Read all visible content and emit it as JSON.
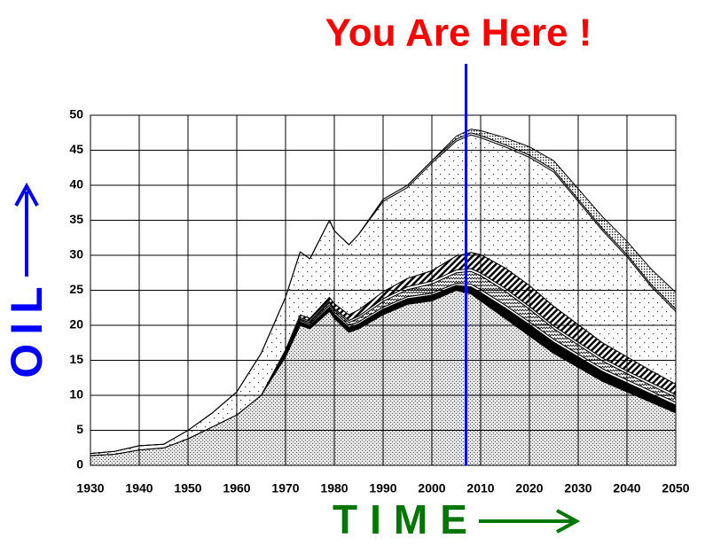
{
  "chart_data": {
    "type": "stacked_area",
    "annotation": {
      "text": "You Are Here !",
      "x": 2007,
      "color": "#ff0000",
      "line_color": "#0000ff"
    },
    "ylabel": "OIL",
    "xlabel": "TIME",
    "ylabel_color": "#0000ff",
    "xlabel_color": "#007700",
    "xlim": [
      1930,
      2050
    ],
    "ylim": [
      0,
      50
    ],
    "xticks": [
      1930,
      1940,
      1950,
      1960,
      1970,
      1980,
      1990,
      2000,
      2010,
      2020,
      2030,
      2040,
      2050
    ],
    "yticks": [
      0,
      5,
      10,
      15,
      20,
      25,
      30,
      35,
      40,
      45,
      50
    ],
    "grid": true,
    "x": [
      1930,
      1935,
      1940,
      1945,
      1950,
      1955,
      1960,
      1965,
      1970,
      1973,
      1975,
      1979,
      1980,
      1983,
      1985,
      1990,
      1995,
      2000,
      2005,
      2008,
      2010,
      2015,
      2020,
      2025,
      2030,
      2035,
      2040,
      2045,
      2050
    ],
    "series": [
      {
        "color": "#cccccc",
        "pattern": "fine",
        "values": [
          1.4,
          1.6,
          2.2,
          2.5,
          3.8,
          5.5,
          7.2,
          10,
          15.5,
          20,
          19.5,
          22,
          21,
          19,
          19.5,
          21.5,
          23,
          23.5,
          25,
          24.5,
          23.5,
          21,
          18.5,
          16,
          14,
          12,
          10.5,
          9,
          7.5
        ]
      },
      {
        "color": "#000000",
        "pattern": "solid",
        "values": [
          0,
          0,
          0,
          0,
          0,
          0,
          0,
          0,
          0.3,
          0.5,
          0.5,
          0.6,
          0.6,
          0.7,
          0.7,
          0.8,
          0.8,
          0.8,
          0.7,
          1,
          1.2,
          1.5,
          1.6,
          1.6,
          1.5,
          1.4,
          1.3,
          1.2,
          1.1
        ]
      },
      {
        "color": "#ffffff",
        "pattern": "solid",
        "values": [
          0,
          0,
          0,
          0,
          0,
          0,
          0,
          0,
          0.2,
          0.2,
          0.2,
          0.3,
          0.3,
          0.3,
          0.3,
          0.3,
          0.3,
          0.3,
          0.3,
          0.4,
          0.4,
          0.4,
          0.4,
          0.4,
          0.4,
          0.4,
          0.4,
          0.4,
          0.4
        ]
      },
      {
        "color": "#ffffff",
        "pattern": "wavy",
        "values": [
          0,
          0,
          0,
          0,
          0,
          0,
          0,
          0,
          0,
          0.2,
          0.2,
          0.3,
          0.3,
          0.4,
          0.5,
          0.8,
          1,
          1.3,
          1.5,
          1.8,
          2,
          2,
          1.8,
          1.5,
          1.3,
          1.1,
          0.9,
          0.8,
          0.7
        ]
      },
      {
        "color": "#ffffff",
        "pattern": "solid",
        "values": [
          0,
          0,
          0,
          0,
          0,
          0,
          0,
          0,
          0.2,
          0.2,
          0.2,
          0.2,
          0.2,
          0.3,
          0.3,
          0.4,
          0.4,
          0.4,
          0.4,
          0.4,
          0.4,
          0.4,
          0.4,
          0.4,
          0.4,
          0.4,
          0.4,
          0.4,
          0.4
        ]
      },
      {
        "color": "#000000",
        "pattern": "hatch",
        "values": [
          0,
          0,
          0,
          0,
          0,
          0,
          0,
          0,
          0.3,
          0.4,
          0.4,
          0.6,
          0.7,
          0.8,
          0.9,
          1,
          1.2,
          1.5,
          2,
          2.3,
          2.6,
          2.9,
          3,
          2.8,
          2.5,
          2.2,
          2,
          1.7,
          1.5
        ]
      },
      {
        "color": "#ffffff",
        "pattern": "sparse",
        "values": [
          0.3,
          0.4,
          0.6,
          0.5,
          1.2,
          2,
          3.3,
          6,
          7.5,
          9,
          8.5,
          11,
          10.4,
          10,
          10.8,
          12.9,
          13,
          15.4,
          16.4,
          16.8,
          16.7,
          17.3,
          18.3,
          19.2,
          17.6,
          16,
          14.3,
          12,
          10.4
        ]
      },
      {
        "color": "#ffffff",
        "pattern": "solid",
        "values": [
          0,
          0,
          0,
          0,
          0,
          0,
          0,
          0,
          0,
          0,
          0,
          0,
          0,
          0,
          0,
          0.3,
          0.3,
          0.3,
          0.3,
          0.3,
          0.3,
          0.3,
          0.3,
          0.3,
          0.3,
          0.3,
          0.3,
          0.3,
          0.3
        ]
      },
      {
        "color": "#999999",
        "pattern": "dense",
        "values": [
          0,
          0,
          0,
          0,
          0,
          0,
          0,
          0,
          0,
          0,
          0,
          0,
          0,
          0,
          0,
          0,
          0,
          0,
          0.4,
          0.5,
          0.7,
          1,
          1.2,
          1.3,
          1.5,
          1.7,
          1.9,
          2.2,
          2.4
        ]
      }
    ]
  }
}
